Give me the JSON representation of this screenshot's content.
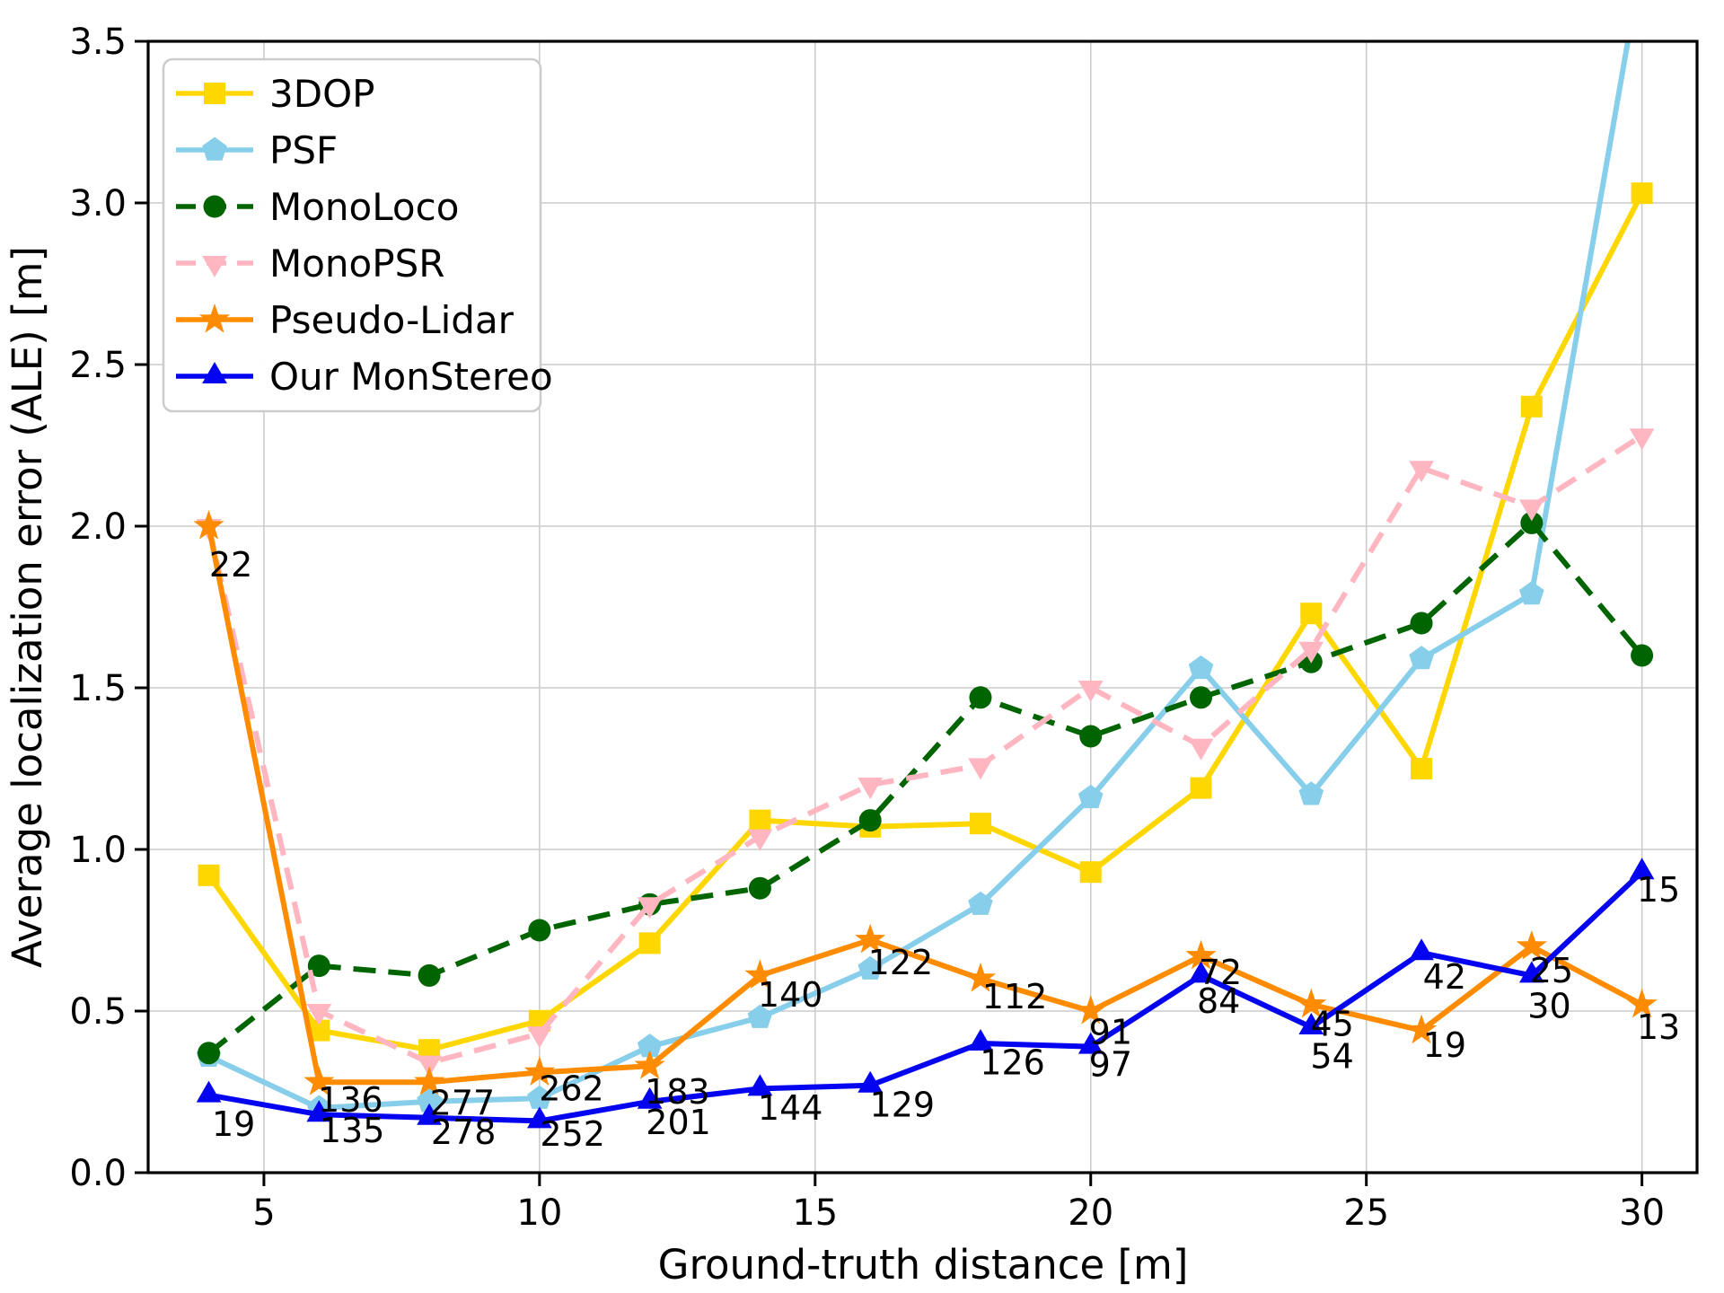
{
  "chart_data": {
    "type": "line",
    "title": "",
    "xlabel": "Ground-truth distance [m]",
    "ylabel": "Average localization error (ALE) [m]",
    "x": [
      4,
      6,
      8,
      10,
      12,
      14,
      16,
      18,
      20,
      22,
      24,
      26,
      28,
      30
    ],
    "xlim": [
      2.9,
      31.0
    ],
    "ylim": [
      0,
      3.5
    ],
    "xticks": [
      5,
      10,
      15,
      20,
      25,
      30
    ],
    "xtick_labels": [
      "5",
      "10",
      "15",
      "20",
      "25",
      "30"
    ],
    "yticks": [
      0,
      0.5,
      1.0,
      1.5,
      2.0,
      2.5,
      3.0,
      3.5
    ],
    "ytick_labels": [
      "0.0",
      "0.5",
      "1.0",
      "1.5",
      "2.0",
      "2.5",
      "3.0",
      "3.5"
    ],
    "grid": true,
    "grid_color": "#cccccc",
    "legend_position": "upper-left",
    "series": [
      {
        "name": "3DOP",
        "color": "#FFD700",
        "marker": "square",
        "line": "solid",
        "values": [
          0.92,
          0.44,
          0.38,
          0.47,
          0.71,
          1.09,
          1.07,
          1.08,
          0.93,
          1.19,
          1.73,
          1.25,
          2.37,
          3.03
        ]
      },
      {
        "name": "PSF",
        "color": "#87CEEB",
        "marker": "pentagon",
        "line": "solid",
        "values": [
          0.36,
          0.2,
          0.22,
          0.23,
          0.39,
          0.48,
          0.63,
          0.83,
          1.16,
          1.56,
          1.17,
          1.59,
          1.79,
          3.75
        ]
      },
      {
        "name": "MonoLoco",
        "color": "#006400",
        "marker": "circle",
        "line": "dashed",
        "values": [
          0.37,
          0.64,
          0.61,
          0.75,
          0.83,
          0.88,
          1.09,
          1.47,
          1.35,
          1.47,
          1.58,
          1.7,
          2.01,
          1.6
        ]
      },
      {
        "name": "MonoPSR",
        "color": "#FFB6C1",
        "marker": "triangle-down",
        "line": "dashed",
        "values": [
          2.0,
          0.5,
          0.34,
          0.43,
          0.83,
          1.04,
          1.2,
          1.26,
          1.5,
          1.32,
          1.62,
          2.18,
          2.06,
          2.28
        ]
      },
      {
        "name": "Pseudo-Lidar",
        "color": "#FF8C00",
        "marker": "star",
        "line": "solid",
        "values": [
          2.0,
          0.28,
          0.28,
          0.31,
          0.33,
          0.61,
          0.72,
          0.6,
          0.5,
          0.67,
          0.52,
          0.44,
          0.7,
          0.52
        ]
      },
      {
        "name": "Our MonStereo",
        "color": "#0404F0",
        "marker": "triangle-up",
        "line": "solid",
        "values": [
          0.24,
          0.18,
          0.17,
          0.16,
          0.22,
          0.26,
          0.27,
          0.4,
          0.39,
          0.61,
          0.45,
          0.68,
          0.61,
          0.93
        ]
      }
    ],
    "annotations": [
      {
        "text": "22",
        "x": 4.4,
        "y": 1.88
      },
      {
        "text": "19",
        "x": 4.45,
        "y": 0.15
      },
      {
        "text": "136",
        "x": 6.57,
        "y": 0.225
      },
      {
        "text": "135",
        "x": 6.6,
        "y": 0.13
      },
      {
        "text": "277",
        "x": 8.6,
        "y": 0.215
      },
      {
        "text": "278",
        "x": 8.62,
        "y": 0.125
      },
      {
        "text": "262",
        "x": 10.58,
        "y": 0.26
      },
      {
        "text": "252",
        "x": 10.6,
        "y": 0.12
      },
      {
        "text": "183",
        "x": 12.5,
        "y": 0.25
      },
      {
        "text": "201",
        "x": 12.52,
        "y": 0.155
      },
      {
        "text": "140",
        "x": 14.55,
        "y": 0.55
      },
      {
        "text": "144",
        "x": 14.55,
        "y": 0.2
      },
      {
        "text": "122",
        "x": 16.55,
        "y": 0.65
      },
      {
        "text": "129",
        "x": 16.58,
        "y": 0.21
      },
      {
        "text": "112",
        "x": 18.62,
        "y": 0.545
      },
      {
        "text": "126",
        "x": 18.58,
        "y": 0.34
      },
      {
        "text": "91",
        "x": 20.36,
        "y": 0.435
      },
      {
        "text": "97",
        "x": 20.36,
        "y": 0.335
      },
      {
        "text": "72",
        "x": 22.35,
        "y": 0.62
      },
      {
        "text": "84",
        "x": 22.32,
        "y": 0.53
      },
      {
        "text": "45",
        "x": 24.38,
        "y": 0.46
      },
      {
        "text": "54",
        "x": 24.38,
        "y": 0.36
      },
      {
        "text": "42",
        "x": 26.42,
        "y": 0.605
      },
      {
        "text": "19",
        "x": 26.42,
        "y": 0.395
      },
      {
        "text": "25",
        "x": 28.36,
        "y": 0.625
      },
      {
        "text": "30",
        "x": 28.32,
        "y": 0.515
      },
      {
        "text": "15",
        "x": 30.3,
        "y": 0.875
      },
      {
        "text": "13",
        "x": 30.3,
        "y": 0.45
      }
    ]
  }
}
